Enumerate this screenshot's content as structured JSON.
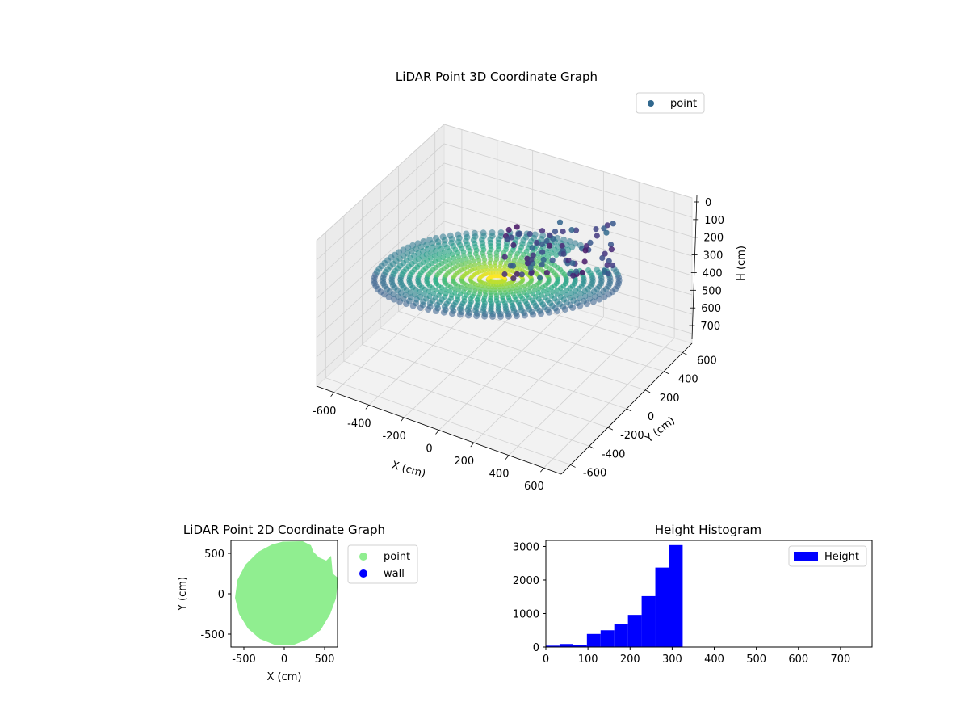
{
  "chart_data": [
    {
      "type": "scatter",
      "title": "LiDAR Point 3D Coordinate Graph",
      "xlabel": "X (cm)",
      "ylabel": "Y (cm)",
      "zlabel": "H (cm)",
      "xticks": [
        -600,
        -400,
        -200,
        0,
        200,
        400,
        600
      ],
      "yticks": [
        -600,
        -400,
        -200,
        0,
        200,
        400,
        600
      ],
      "zticks": [
        0,
        100,
        200,
        300,
        400,
        500,
        600,
        700
      ],
      "xlim": [
        -700,
        700
      ],
      "ylim": [
        -700,
        700
      ],
      "zlim": [
        750,
        0
      ],
      "legend": {
        "label": "point",
        "color": "#31688e",
        "placement": "top-right"
      },
      "colormap": "viridis",
      "grid": true
    },
    {
      "type": "scatter",
      "title": "LiDAR Point 2D Coordinate Graph",
      "xlabel": "X (cm)",
      "ylabel": "Y (cm)",
      "xticks": [
        -500,
        0,
        500
      ],
      "yticks": [
        -500,
        0,
        500
      ],
      "xlim": [
        -660,
        660
      ],
      "ylim": [
        -660,
        660
      ],
      "series": [
        {
          "name": "point",
          "color": "#90ee90"
        },
        {
          "name": "wall",
          "color": "#0000ff"
        }
      ],
      "legend_placement": "outside-right"
    },
    {
      "type": "bar",
      "title": "Height Histogram",
      "xticks": [
        0,
        100,
        200,
        300,
        400,
        500,
        600,
        700
      ],
      "yticks": [
        0,
        1000,
        2000,
        3000
      ],
      "xlim": [
        0,
        775
      ],
      "ylim": [
        0,
        3180
      ],
      "bin_edges": [
        0,
        32.5,
        65,
        97.5,
        130,
        162.5,
        195,
        227.5,
        260,
        292.5,
        325
      ],
      "values": [
        40,
        90,
        70,
        390,
        500,
        680,
        960,
        1520,
        2370,
        3040
      ],
      "legend": {
        "label": "Height",
        "color": "#0000ff",
        "placement": "top-right"
      }
    }
  ]
}
